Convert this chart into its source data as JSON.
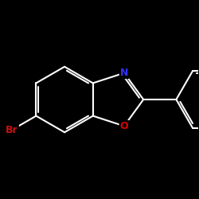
{
  "background_color": "#000000",
  "bond_color": "#ffffff",
  "bond_width": 1.5,
  "dbo": 0.07,
  "atom_labels": {
    "N": {
      "color": "#3333ff",
      "fontsize": 9,
      "fontweight": "bold"
    },
    "O": {
      "color": "#dd0000",
      "fontsize": 9,
      "fontweight": "bold"
    },
    "Br": {
      "color": "#cc1111",
      "fontsize": 9,
      "fontweight": "bold"
    }
  },
  "figsize": [
    2.5,
    2.5
  ],
  "dpi": 100,
  "xlim": [
    -2.8,
    3.2
  ],
  "ylim": [
    -2.2,
    2.2
  ]
}
